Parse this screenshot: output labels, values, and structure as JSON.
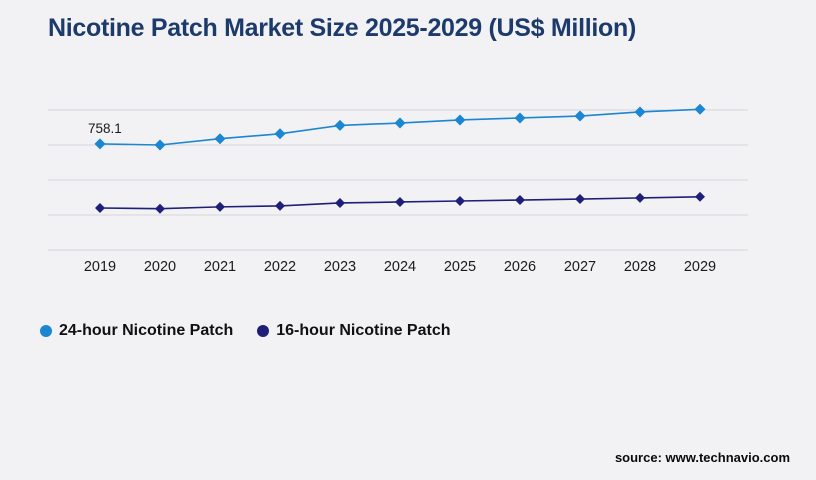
{
  "page": {
    "title": "Nicotine Patch Market Size 2025-2029 (US$ Million)",
    "source": "source: www.technavio.com",
    "background_color": "#f2f2f5",
    "title_color": "#1c3a6b"
  },
  "legend": {
    "items": [
      {
        "label": "24-hour Nicotine Patch",
        "color": "#1b86d1"
      },
      {
        "label": "16-hour Nicotine Patch",
        "color": "#1f1f7a"
      }
    ]
  },
  "chart_data": {
    "type": "line",
    "title": "Nicotine Patch Market Size 2025-2029 (US$ Million)",
    "xlabel": "",
    "ylabel": "",
    "x": [
      2019,
      2020,
      2021,
      2022,
      2023,
      2024,
      2025,
      2026,
      2027,
      2028,
      2029
    ],
    "series": [
      {
        "name": "24-hour Nicotine Patch",
        "color": "#1b86d1",
        "marker": "diamond",
        "values": [
          758.1,
          750,
          795,
          830,
          890,
          907,
          929,
          943,
          957,
          986,
          1005
        ]
      },
      {
        "name": "16-hour Nicotine Patch",
        "color": "#1f1f7a",
        "marker": "diamond",
        "values": [
          300,
          295,
          308,
          315,
          336,
          343,
          350,
          357,
          364,
          372,
          380
        ]
      }
    ],
    "point_label": {
      "series": 0,
      "index": 0,
      "text": "758.1"
    },
    "ylim": [
      0,
      1000
    ],
    "gridline_values": [
      0,
      250,
      500,
      750,
      1000
    ],
    "grid": "horizontal-only",
    "gridline_color": "#d6d6dc",
    "tick_label_color": "#1a1a1a",
    "legend_position": "bottom-left"
  }
}
